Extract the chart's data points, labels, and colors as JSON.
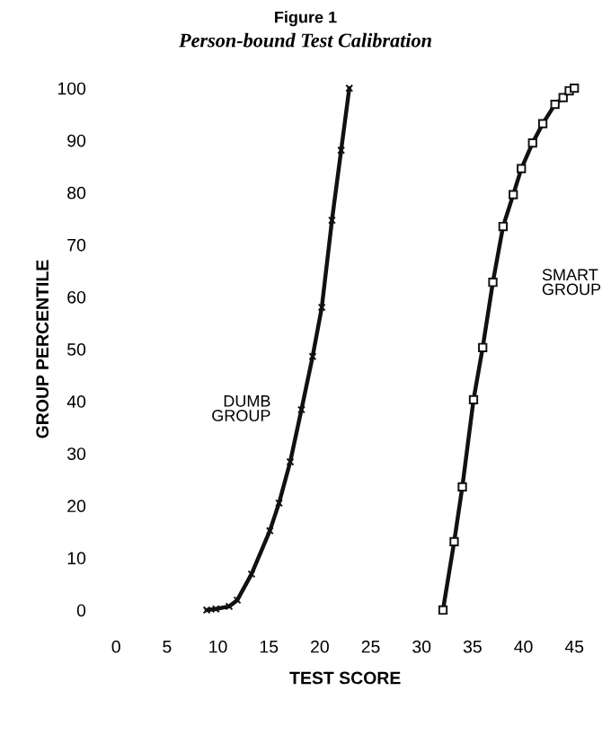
{
  "chart_data": {
    "type": "line",
    "title": "Figure 1",
    "subtitle": "Person-bound Test Calibration",
    "xlabel": "TEST SCORE",
    "ylabel": "GROUP PERCENTILE",
    "xlim": [
      0,
      45
    ],
    "ylim": [
      0,
      100
    ],
    "xticks": [
      0,
      5,
      10,
      15,
      20,
      25,
      30,
      35,
      40,
      45
    ],
    "yticks": [
      0,
      10,
      20,
      30,
      40,
      50,
      60,
      70,
      80,
      90,
      100
    ],
    "grid": false,
    "legend": false,
    "line_style": "solid",
    "series": [
      {
        "name": "DUMB GROUP",
        "color": "#111111",
        "marker": "cross",
        "x": [
          8.9,
          9.8,
          11.1,
          11.9,
          13.3,
          15.1,
          16.0,
          17.1,
          18.2,
          19.3,
          20.2,
          21.2,
          22.1,
          22.9
        ],
        "values": [
          0,
          0.2,
          0.7,
          1.9,
          6.9,
          15.2,
          20.5,
          28.4,
          38.4,
          48.6,
          58.0,
          74.7,
          88.1,
          100
        ]
      },
      {
        "name": "SMART GROUP",
        "color": "#111111",
        "marker": "square",
        "x": [
          32.1,
          33.2,
          34.0,
          35.1,
          36.0,
          37.0,
          38.0,
          39.0,
          39.8,
          40.9,
          41.9,
          43.1,
          43.9,
          44.5,
          45.0
        ],
        "values": [
          0,
          13.1,
          23.6,
          40.3,
          50.3,
          62.8,
          73.5,
          79.6,
          84.6,
          89.5,
          93.2,
          96.9,
          98.2,
          99.5,
          100
        ]
      }
    ]
  }
}
